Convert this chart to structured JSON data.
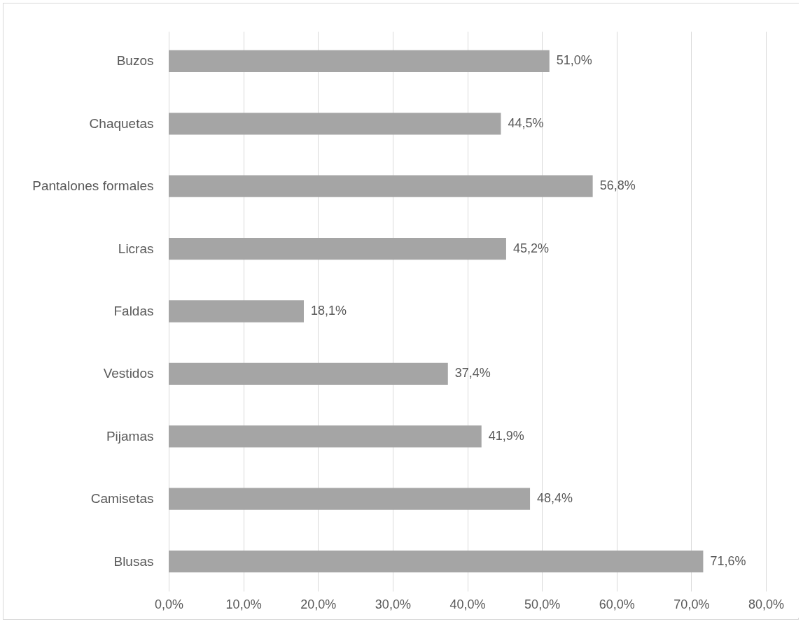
{
  "chart_data": {
    "type": "bar",
    "orientation": "horizontal",
    "categories": [
      "Buzos",
      "Chaquetas",
      "Pantalones formales",
      "Licras",
      "Faldas",
      "Vestidos",
      "Pijamas",
      "Camisetas",
      "Blusas"
    ],
    "values": [
      51.0,
      44.5,
      56.8,
      45.2,
      18.1,
      37.4,
      41.9,
      48.4,
      71.6
    ],
    "value_labels": [
      "51,0%",
      "44,5%",
      "56,8%",
      "45,2%",
      "18,1%",
      "37,4%",
      "41,9%",
      "48,4%",
      "71,6%"
    ],
    "color": "#a5a5a5",
    "xlim": [
      0,
      80
    ],
    "xticks": [
      {
        "value": 0,
        "label": "0,0%"
      },
      {
        "value": 10,
        "label": "10,0%"
      },
      {
        "value": 20,
        "label": "20,0%"
      },
      {
        "value": 30,
        "label": "30,0%"
      },
      {
        "value": 40,
        "label": "40,0%"
      },
      {
        "value": 50,
        "label": "50,0%"
      },
      {
        "value": 60,
        "label": "60,0%"
      },
      {
        "value": 70,
        "label": "70,0%"
      },
      {
        "value": 80,
        "label": "80,0%"
      }
    ],
    "grid": "x"
  }
}
